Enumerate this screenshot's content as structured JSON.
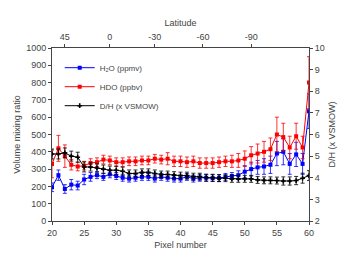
{
  "chart_data": {
    "type": "line",
    "xlabel": "Pixel number",
    "ylabel": "Volume mixing ratio",
    "y2label": "D/H (x VSMOW)",
    "x2label": "Latitude",
    "x": [
      20,
      21,
      22,
      23,
      24,
      25,
      26,
      27,
      28,
      29,
      30,
      31,
      32,
      33,
      34,
      35,
      36,
      37,
      38,
      39,
      40,
      41,
      42,
      43,
      44,
      45,
      46,
      47,
      48,
      49,
      50,
      51,
      52,
      53,
      54,
      55,
      56,
      57,
      58,
      59,
      60
    ],
    "xlim": [
      20,
      60
    ],
    "xticks": [
      20,
      25,
      30,
      35,
      40,
      45,
      50,
      55,
      60
    ],
    "ylim": [
      0,
      1000
    ],
    "yticks": [
      0,
      100,
      200,
      300,
      400,
      500,
      600,
      700,
      800,
      900,
      1000
    ],
    "y2lim": [
      2,
      10
    ],
    "y2ticks": [
      2,
      3,
      4,
      5,
      6,
      7,
      8,
      9,
      10
    ],
    "x2lim": [
      20,
      60
    ],
    "x2ticks": [
      {
        "value": 22.0,
        "label": "45"
      },
      {
        "value": 29.0,
        "label": "0"
      },
      {
        "value": 36.0,
        "label": "-30"
      },
      {
        "value": 43.5,
        "label": "-60"
      },
      {
        "value": 51.0,
        "label": "-90"
      }
    ],
    "legend": "upper left",
    "grid": false,
    "series": [
      {
        "name": "H₂O (ppmv)",
        "color": "blue",
        "marker": "square",
        "values": [
          195,
          265,
          185,
          210,
          205,
          240,
          255,
          265,
          255,
          270,
          260,
          250,
          245,
          250,
          255,
          255,
          245,
          255,
          250,
          245,
          245,
          255,
          245,
          250,
          250,
          248,
          248,
          255,
          260,
          265,
          285,
          300,
          310,
          315,
          325,
          390,
          400,
          330,
          385,
          330,
          635
        ],
        "errors": [
          25,
          30,
          25,
          30,
          25,
          30,
          25,
          20,
          20,
          20,
          20,
          20,
          20,
          20,
          20,
          20,
          20,
          20,
          20,
          20,
          20,
          20,
          20,
          20,
          20,
          20,
          20,
          20,
          20,
          25,
          35,
          40,
          40,
          45,
          50,
          70,
          75,
          60,
          70,
          60,
          100
        ]
      },
      {
        "name": "HDO (ppbv)",
        "color": "red",
        "marker": "square",
        "values": [
          330,
          420,
          375,
          325,
          315,
          320,
          335,
          340,
          355,
          350,
          340,
          340,
          345,
          345,
          350,
          350,
          360,
          355,
          360,
          345,
          345,
          340,
          345,
          335,
          335,
          335,
          340,
          345,
          345,
          350,
          360,
          380,
          390,
          400,
          415,
          500,
          485,
          425,
          490,
          425,
          800
        ],
        "errors": [
          80,
          75,
          65,
          30,
          25,
          25,
          25,
          25,
          25,
          25,
          25,
          25,
          25,
          25,
          25,
          25,
          25,
          25,
          35,
          30,
          30,
          30,
          30,
          30,
          30,
          30,
          30,
          30,
          35,
          40,
          45,
          50,
          55,
          60,
          65,
          100,
          80,
          65,
          75,
          65,
          150
        ]
      },
      {
        "name": "D/H (x VSMOW)",
        "color": "black",
        "marker": "cross",
        "axis": "y2",
        "values": [
          5.1,
          5.1,
          5.15,
          5.0,
          4.95,
          4.5,
          4.5,
          4.45,
          4.4,
          4.35,
          4.35,
          4.3,
          4.2,
          4.2,
          4.25,
          4.25,
          4.2,
          4.15,
          4.15,
          4.12,
          4.1,
          4.1,
          4.05,
          4.05,
          4.0,
          4.0,
          3.98,
          3.98,
          3.95,
          3.95,
          3.95,
          3.95,
          3.9,
          3.88,
          3.88,
          3.87,
          3.85,
          3.85,
          3.87,
          3.98,
          4.1
        ],
        "errors": [
          0.23,
          0.23,
          0.23,
          0.23,
          0.23,
          0.23,
          0.19,
          0.19,
          0.19,
          0.19,
          0.19,
          0.19,
          0.16,
          0.16,
          0.16,
          0.16,
          0.16,
          0.16,
          0.16,
          0.16,
          0.16,
          0.16,
          0.16,
          0.16,
          0.16,
          0.16,
          0.16,
          0.16,
          0.16,
          0.16,
          0.16,
          0.16,
          0.16,
          0.16,
          0.16,
          0.16,
          0.19,
          0.19,
          0.19,
          0.23,
          0.23
        ]
      }
    ]
  }
}
